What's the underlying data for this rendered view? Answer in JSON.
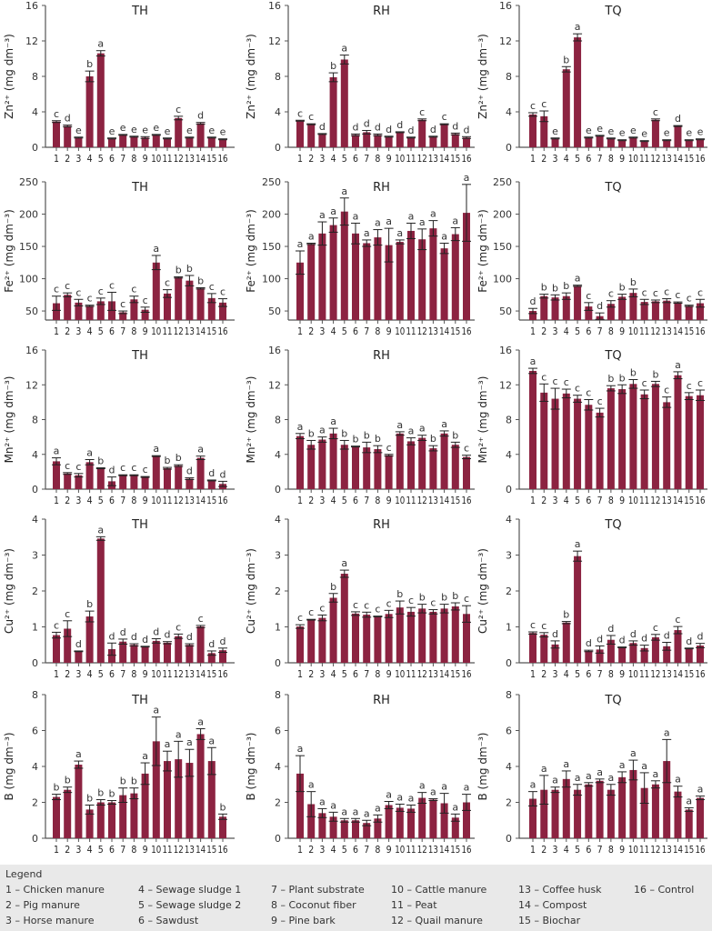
{
  "legend": {
    "title": "Legend",
    "items": [
      "1 – Chicken manure",
      "2 – Pig manure",
      "3 – Horse manure",
      "4 – Sewage sludge 1",
      "5 – Sewage sludge 2",
      "6 – Sawdust",
      "7 – Plant substrate",
      "8 – Coconut fiber",
      "9 – Pine bark",
      "10 – Cattle manure",
      "11 – Peat",
      "12 – Quail manure",
      "13 – Coffee husk",
      "14 – Compost",
      "15 – Biochar",
      "16 – Control"
    ]
  },
  "colors": {
    "bar": "#8c2341",
    "axis": "#555555"
  },
  "chart_data": [
    {
      "type": "bar",
      "title": "TH",
      "ylabel": "Zn²⁺ (mg dm⁻³)",
      "ylim": [
        0,
        16
      ],
      "yticks": [
        0,
        4,
        8,
        12,
        16
      ],
      "categories": [
        "1",
        "2",
        "3",
        "4",
        "5",
        "6",
        "7",
        "8",
        "9",
        "10",
        "11",
        "12",
        "13",
        "14",
        "15",
        "16"
      ],
      "values": [
        2.9,
        2.4,
        1.1,
        8.0,
        10.6,
        1.0,
        1.4,
        1.2,
        1.1,
        1.4,
        1.0,
        3.3,
        1.1,
        2.7,
        1.1,
        0.9
      ],
      "errors": [
        0.1,
        0.1,
        0.05,
        0.6,
        0.3,
        0.05,
        0.05,
        0.05,
        0.1,
        0.05,
        0.05,
        0.2,
        0.05,
        0.1,
        0.05,
        0.05
      ],
      "letters": [
        "c",
        "d",
        "e",
        "b",
        "a",
        "e",
        "e",
        "e",
        "e",
        "e",
        "e",
        "c",
        "e",
        "d",
        "e",
        "e"
      ]
    },
    {
      "type": "bar",
      "title": "RH",
      "ylabel": "Zn²⁺ (mg dm⁻³)",
      "ylim": [
        0,
        16
      ],
      "yticks": [
        0,
        4,
        8,
        12,
        16
      ],
      "categories": [
        "1",
        "2",
        "3",
        "4",
        "5",
        "6",
        "7",
        "8",
        "9",
        "10",
        "11",
        "12",
        "13",
        "14",
        "15",
        "16"
      ],
      "values": [
        3.0,
        2.6,
        1.5,
        7.9,
        9.9,
        1.4,
        1.7,
        1.4,
        1.2,
        1.7,
        1.1,
        3.1,
        1.2,
        2.6,
        1.5,
        1.1
      ],
      "errors": [
        0.05,
        0.05,
        0.05,
        0.5,
        0.5,
        0.1,
        0.2,
        0.1,
        0.05,
        0.05,
        0.05,
        0.1,
        0.05,
        0.05,
        0.1,
        0.1
      ],
      "letters": [
        "c",
        "c",
        "d",
        "b",
        "a",
        "d",
        "d",
        "d",
        "d",
        "d",
        "d",
        "c",
        "d",
        "c",
        "d",
        "d"
      ]
    },
    {
      "type": "bar",
      "title": "TQ",
      "ylabel": "Zn²⁺ (mg dm⁻³)",
      "ylim": [
        0,
        16
      ],
      "yticks": [
        0,
        4,
        8,
        12,
        16
      ],
      "categories": [
        "1",
        "2",
        "3",
        "4",
        "5",
        "6",
        "7",
        "8",
        "9",
        "10",
        "11",
        "12",
        "13",
        "14",
        "15",
        "16"
      ],
      "values": [
        3.7,
        3.5,
        1.0,
        8.8,
        12.4,
        1.1,
        1.3,
        1.0,
        0.8,
        1.1,
        0.7,
        3.1,
        0.8,
        2.4,
        0.8,
        0.9
      ],
      "errors": [
        0.2,
        0.6,
        0.05,
        0.3,
        0.4,
        0.05,
        0.05,
        0.05,
        0.05,
        0.05,
        0.05,
        0.1,
        0.05,
        0.05,
        0.05,
        0.05
      ],
      "letters": [
        "c",
        "c",
        "e",
        "b",
        "a",
        "e",
        "e",
        "e",
        "e",
        "e",
        "e",
        "c",
        "e",
        "d",
        "e",
        "e"
      ]
    },
    {
      "type": "bar",
      "title": "TH",
      "ylabel": "Fe²⁺ (mg dm⁻³)",
      "ylim": [
        36,
        250
      ],
      "yticks": [
        50,
        100,
        150,
        200,
        250
      ],
      "categories": [
        "1",
        "2",
        "3",
        "4",
        "5",
        "6",
        "7",
        "8",
        "9",
        "10",
        "11",
        "12",
        "13",
        "14",
        "15",
        "16"
      ],
      "values": [
        62,
        75,
        63,
        58,
        65,
        65,
        48,
        68,
        52,
        125,
        77,
        102,
        97,
        85,
        70,
        63
      ],
      "errors": [
        11,
        3,
        5,
        1,
        5,
        14,
        2,
        5,
        4,
        11,
        6,
        1,
        8,
        1,
        7,
        6
      ],
      "letters": [
        "c",
        "c",
        "c",
        "c",
        "c",
        "c",
        "c",
        "c",
        "c",
        "a",
        "c",
        "b",
        "b",
        "b",
        "c",
        "c"
      ]
    },
    {
      "type": "bar",
      "title": "RH",
      "ylabel": "Fe²⁺ (mg dm⁻³)",
      "ylim": [
        36,
        250
      ],
      "yticks": [
        50,
        100,
        150,
        200,
        250
      ],
      "categories": [
        "1",
        "2",
        "3",
        "4",
        "5",
        "6",
        "7",
        "8",
        "9",
        "10",
        "11",
        "12",
        "13",
        "14",
        "15",
        "16"
      ],
      "values": [
        125,
        154,
        170,
        183,
        204,
        170,
        155,
        164,
        152,
        157,
        174,
        161,
        178,
        147,
        169,
        202
      ],
      "errors": [
        18,
        1,
        18,
        11,
        21,
        16,
        5,
        12,
        26,
        3,
        12,
        16,
        12,
        8,
        10,
        44
      ],
      "letters": [
        "a",
        "a",
        "a",
        "a",
        "a",
        "a",
        "a",
        "a",
        "a",
        "a",
        "a",
        "a",
        "a",
        "a",
        "a",
        "a"
      ]
    },
    {
      "type": "bar",
      "title": "TQ",
      "ylabel": "Fe²⁺ (mg dm⁻³)",
      "ylim": [
        36,
        250
      ],
      "yticks": [
        50,
        100,
        150,
        200,
        250
      ],
      "categories": [
        "1",
        "2",
        "3",
        "4",
        "5",
        "6",
        "7",
        "8",
        "9",
        "10",
        "11",
        "12",
        "13",
        "14",
        "15",
        "16"
      ],
      "values": [
        50,
        73,
        71,
        73,
        89,
        57,
        42,
        61,
        72,
        78,
        64,
        65,
        66,
        63,
        58,
        62
      ],
      "errors": [
        4,
        3,
        4,
        5,
        1,
        6,
        5,
        5,
        4,
        6,
        4,
        2,
        3,
        1,
        1,
        6
      ],
      "letters": [
        "d",
        "b",
        "b",
        "b",
        "a",
        "c",
        "d",
        "c",
        "b",
        "b",
        "c",
        "c",
        "c",
        "c",
        "c",
        "c"
      ]
    },
    {
      "type": "bar",
      "title": "TH",
      "ylabel": "Mn²⁺ (mg dm⁻³)",
      "ylim": [
        0,
        16
      ],
      "yticks": [
        0,
        4,
        8,
        12,
        16
      ],
      "categories": [
        "1",
        "2",
        "3",
        "4",
        "5",
        "6",
        "7",
        "8",
        "9",
        "10",
        "11",
        "12",
        "13",
        "14",
        "15",
        "16"
      ],
      "values": [
        3.2,
        1.8,
        1.6,
        3.1,
        2.4,
        0.9,
        1.6,
        1.6,
        1.4,
        3.8,
        2.4,
        2.7,
        1.2,
        3.6,
        1.0,
        0.6
      ],
      "errors": [
        0.4,
        0.1,
        0.2,
        0.3,
        0.05,
        0.5,
        0.05,
        0.05,
        0.05,
        0.05,
        0.1,
        0.1,
        0.1,
        0.2,
        0.05,
        0.3
      ],
      "letters": [
        "a",
        "c",
        "c",
        "a",
        "b",
        "d",
        "c",
        "c",
        "c",
        "a",
        "b",
        "b",
        "d",
        "a",
        "d",
        "d"
      ]
    },
    {
      "type": "bar",
      "title": "RH",
      "ylabel": "Mn²⁺ (mg dm⁻³)",
      "ylim": [
        0,
        16
      ],
      "yticks": [
        0,
        4,
        8,
        12,
        16
      ],
      "categories": [
        "1",
        "2",
        "3",
        "4",
        "5",
        "6",
        "7",
        "8",
        "9",
        "10",
        "11",
        "12",
        "13",
        "14",
        "15",
        "16"
      ],
      "values": [
        6.1,
        5.1,
        5.7,
        6.4,
        5.1,
        4.9,
        4.8,
        4.6,
        3.9,
        6.4,
        5.5,
        5.9,
        4.7,
        6.4,
        5.1,
        3.7
      ],
      "errors": [
        0.3,
        0.5,
        0.3,
        0.6,
        0.5,
        0.05,
        0.6,
        0.4,
        0.1,
        0.2,
        0.4,
        0.3,
        0.3,
        0.3,
        0.3,
        0.2
      ],
      "letters": [
        "a",
        "b",
        "a",
        "a",
        "b",
        "b",
        "b",
        "b",
        "c",
        "a",
        "a",
        "a",
        "b",
        "a",
        "b",
        "c"
      ]
    },
    {
      "type": "bar",
      "title": "TQ",
      "ylabel": "Mn²⁺ (mg dm⁻³)",
      "ylim": [
        0,
        16
      ],
      "yticks": [
        0,
        4,
        8,
        12,
        16
      ],
      "categories": [
        "1",
        "2",
        "3",
        "4",
        "5",
        "6",
        "7",
        "8",
        "9",
        "10",
        "11",
        "12",
        "13",
        "14",
        "15",
        "16"
      ],
      "values": [
        13.6,
        11.1,
        10.4,
        11.0,
        10.4,
        9.7,
        8.8,
        11.6,
        11.5,
        12.1,
        10.9,
        12.1,
        10.0,
        13.1,
        10.7,
        10.8
      ],
      "errors": [
        0.3,
        1.0,
        1.2,
        0.5,
        0.4,
        0.6,
        0.5,
        0.3,
        0.5,
        0.5,
        0.5,
        0.3,
        0.6,
        0.4,
        0.4,
        0.6
      ],
      "letters": [
        "a",
        "c",
        "c",
        "c",
        "c",
        "c",
        "c",
        "b",
        "b",
        "b",
        "c",
        "b",
        "c",
        "a",
        "c",
        "c"
      ]
    },
    {
      "type": "bar",
      "title": "TH",
      "ylabel": "Cu²⁺ (mg dm⁻³)",
      "ylim": [
        0,
        4
      ],
      "yticks": [
        0,
        1,
        2,
        3,
        4
      ],
      "categories": [
        "1",
        "2",
        "3",
        "4",
        "5",
        "6",
        "7",
        "8",
        "9",
        "10",
        "11",
        "12",
        "13",
        "14",
        "15",
        "16"
      ],
      "values": [
        0.77,
        0.95,
        0.32,
        1.29,
        3.46,
        0.38,
        0.59,
        0.5,
        0.45,
        0.61,
        0.56,
        0.74,
        0.5,
        1.01,
        0.27,
        0.35
      ],
      "errors": [
        0.08,
        0.22,
        0.01,
        0.15,
        0.05,
        0.17,
        0.07,
        0.03,
        0.01,
        0.06,
        0.03,
        0.06,
        0.03,
        0.03,
        0.06,
        0.06
      ],
      "letters": [
        "c",
        "c",
        "d",
        "b",
        "a",
        "d",
        "d",
        "d",
        "d",
        "d",
        "d",
        "c",
        "d",
        "c",
        "d",
        "d"
      ]
    },
    {
      "type": "bar",
      "title": "RH",
      "ylabel": "Cu²⁺ (mg dm⁻³)",
      "ylim": [
        0,
        4
      ],
      "yticks": [
        0,
        1,
        2,
        3,
        4
      ],
      "categories": [
        "1",
        "2",
        "3",
        "4",
        "5",
        "6",
        "7",
        "8",
        "9",
        "10",
        "11",
        "12",
        "13",
        "14",
        "15",
        "16"
      ],
      "values": [
        1.01,
        1.2,
        1.25,
        1.81,
        2.48,
        1.37,
        1.34,
        1.29,
        1.36,
        1.54,
        1.42,
        1.51,
        1.42,
        1.51,
        1.57,
        1.36
      ],
      "errors": [
        0.05,
        0.01,
        0.08,
        0.12,
        0.1,
        0.05,
        0.07,
        0.01,
        0.1,
        0.18,
        0.12,
        0.12,
        0.06,
        0.12,
        0.1,
        0.23
      ],
      "letters": [
        "c",
        "c",
        "c",
        "b",
        "a",
        "c",
        "c",
        "c",
        "c",
        "b",
        "c",
        "b",
        "c",
        "b",
        "b",
        "c"
      ]
    },
    {
      "type": "bar",
      "title": "TQ",
      "ylabel": "Cu²⁺ (mg dm⁻³)",
      "ylim": [
        0,
        4
      ],
      "yticks": [
        0,
        1,
        2,
        3,
        4
      ],
      "categories": [
        "1",
        "2",
        "3",
        "4",
        "5",
        "6",
        "7",
        "8",
        "9",
        "10",
        "11",
        "12",
        "13",
        "14",
        "15",
        "16"
      ],
      "values": [
        0.83,
        0.78,
        0.51,
        1.12,
        2.97,
        0.33,
        0.37,
        0.64,
        0.43,
        0.55,
        0.41,
        0.71,
        0.46,
        0.91,
        0.4,
        0.48
      ],
      "errors": [
        0.03,
        0.06,
        0.1,
        0.03,
        0.14,
        0.02,
        0.1,
        0.12,
        0.01,
        0.06,
        0.08,
        0.08,
        0.11,
        0.1,
        0.01,
        0.06
      ],
      "letters": [
        "c",
        "c",
        "d",
        "b",
        "a",
        "d",
        "d",
        "d",
        "d",
        "d",
        "d",
        "c",
        "d",
        "c",
        "d",
        "d"
      ]
    },
    {
      "type": "bar",
      "title": "TH",
      "ylabel": "B (mg dm⁻³)",
      "ylim": [
        0,
        8
      ],
      "yticks": [
        0,
        2,
        4,
        6,
        8
      ],
      "categories": [
        "1",
        "2",
        "3",
        "4",
        "5",
        "6",
        "7",
        "8",
        "9",
        "10",
        "11",
        "12",
        "13",
        "14",
        "15",
        "16"
      ],
      "values": [
        2.3,
        2.7,
        4.1,
        1.6,
        2.0,
        2.0,
        2.4,
        2.5,
        3.6,
        5.4,
        4.3,
        4.4,
        4.2,
        5.8,
        4.3,
        1.2
      ],
      "errors": [
        0.15,
        0.15,
        0.2,
        0.25,
        0.15,
        0.1,
        0.4,
        0.3,
        0.6,
        1.35,
        0.55,
        1.0,
        0.75,
        0.3,
        0.75,
        0.15
      ],
      "letters": [
        "b",
        "b",
        "a",
        "b",
        "b",
        "b",
        "b",
        "b",
        "a",
        "a",
        "a",
        "a",
        "a",
        "a",
        "a",
        "b"
      ]
    },
    {
      "type": "bar",
      "title": "RH",
      "ylabel": "B (mg dm⁻³)",
      "ylim": [
        0,
        8
      ],
      "yticks": [
        0,
        2,
        4,
        6,
        8
      ],
      "categories": [
        "1",
        "2",
        "3",
        "4",
        "5",
        "6",
        "7",
        "8",
        "9",
        "10",
        "11",
        "12",
        "13",
        "14",
        "15",
        "16"
      ],
      "values": [
        3.6,
        1.9,
        1.4,
        1.2,
        1.0,
        1.0,
        0.85,
        1.1,
        1.85,
        1.7,
        1.65,
        2.25,
        2.15,
        1.95,
        1.15,
        2.0
      ],
      "errors": [
        1.0,
        0.7,
        0.25,
        0.25,
        0.1,
        0.1,
        0.15,
        0.2,
        0.2,
        0.2,
        0.2,
        0.3,
        0.05,
        0.55,
        0.2,
        0.45
      ],
      "letters": [
        "a",
        "a",
        "a",
        "a",
        "a",
        "a",
        "a",
        "a",
        "a",
        "a",
        "a",
        "a",
        "a",
        "a",
        "a",
        "a"
      ]
    },
    {
      "type": "bar",
      "title": "TQ",
      "ylabel": "B (mg dm⁻³)",
      "ylim": [
        0,
        8
      ],
      "yticks": [
        0,
        2,
        4,
        6,
        8
      ],
      "categories": [
        "1",
        "2",
        "3",
        "4",
        "5",
        "6",
        "7",
        "8",
        "9",
        "10",
        "11",
        "12",
        "13",
        "14",
        "15",
        "16"
      ],
      "values": [
        2.2,
        2.7,
        2.7,
        3.3,
        2.7,
        3.0,
        3.2,
        2.7,
        3.4,
        3.8,
        2.8,
        3.0,
        4.3,
        2.6,
        1.6,
        2.25
      ],
      "errors": [
        0.4,
        0.8,
        0.15,
        0.45,
        0.3,
        0.1,
        0.1,
        0.3,
        0.3,
        0.55,
        0.85,
        0.2,
        1.2,
        0.3,
        0.1,
        0.1
      ],
      "letters": [
        "a",
        "a",
        "a",
        "a",
        "a",
        "a",
        "a",
        "a",
        "a",
        "a",
        "a",
        "a",
        "a",
        "a",
        "a",
        "a"
      ]
    }
  ]
}
